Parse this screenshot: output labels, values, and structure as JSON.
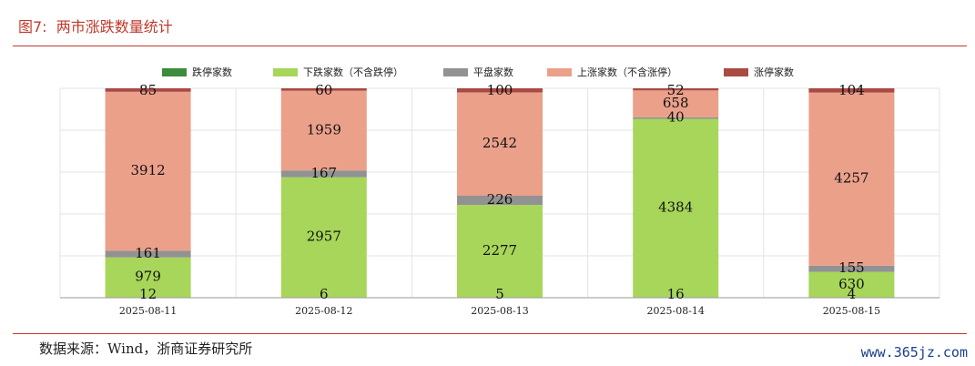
{
  "figure": {
    "label": "图7:",
    "title": "两市涨跌数量统计",
    "source": "数据来源：Wind，浙商证券研究所",
    "watermark": "www.365jz.com"
  },
  "chart_data": {
    "type": "bar",
    "stacked": true,
    "categories": [
      "2025-08-11",
      "2025-08-12",
      "2025-08-13",
      "2025-08-14",
      "2025-08-15"
    ],
    "series": [
      {
        "name": "跌停家数",
        "color": "#3d8b3d",
        "values": [
          12,
          6,
          5,
          16,
          4
        ]
      },
      {
        "name": "下跌家数（不含跌停）",
        "color": "#a7d65a",
        "values": [
          979,
          2957,
          2277,
          4384,
          630
        ]
      },
      {
        "name": "平盘家数",
        "color": "#929292",
        "values": [
          161,
          167,
          226,
          40,
          155
        ]
      },
      {
        "name": "上涨家数（不含涨停）",
        "color": "#eba08a",
        "values": [
          3912,
          1959,
          2542,
          658,
          4257
        ]
      },
      {
        "name": "涨停家数",
        "color": "#a94a45",
        "values": [
          85,
          60,
          100,
          52,
          104
        ]
      }
    ],
    "grid": true,
    "legend_position": "top"
  }
}
